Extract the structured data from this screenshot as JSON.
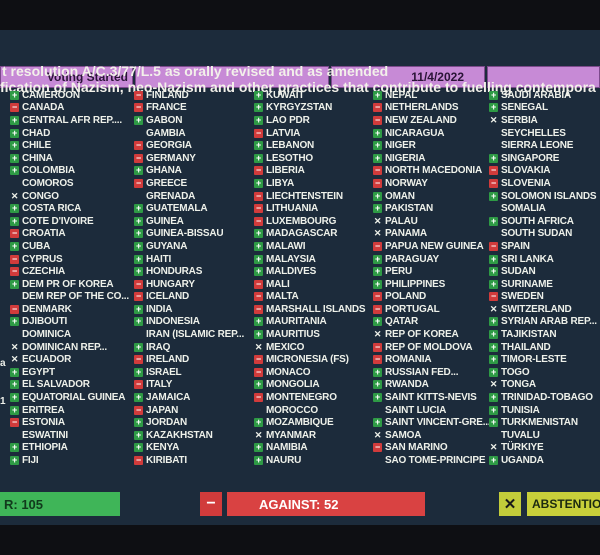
{
  "header": {
    "status": "Voting Started",
    "date": "11/4/2022"
  },
  "title": {
    "line1": "t resolution A/C.3/77/L.5 as orally revised and as amended",
    "line2": "fication of Nazism, neo-Nazism and other practices that contribute to fuelling contempora"
  },
  "legend_colors": {
    "yes": "#2e9a45",
    "no": "#d13b3b",
    "abstain": "#c3cc3a"
  },
  "columns": [
    [
      {
        "n": "CAMEROON",
        "v": "yes"
      },
      {
        "n": "CANADA",
        "v": "no"
      },
      {
        "n": "CENTRAL AFR REP....",
        "v": "yes"
      },
      {
        "n": "CHAD",
        "v": "yes"
      },
      {
        "n": "CHILE",
        "v": "yes"
      },
      {
        "n": "CHINA",
        "v": "yes"
      },
      {
        "n": "COLOMBIA",
        "v": "yes"
      },
      {
        "n": "COMOROS",
        "v": "none"
      },
      {
        "n": "CONGO",
        "v": "abstain"
      },
      {
        "n": "COSTA RICA",
        "v": "yes"
      },
      {
        "n": "COTE D'IVOIRE",
        "v": "yes"
      },
      {
        "n": "CROATIA",
        "v": "no"
      },
      {
        "n": "CUBA",
        "v": "yes"
      },
      {
        "n": "CYPRUS",
        "v": "no"
      },
      {
        "n": "CZECHIA",
        "v": "no"
      },
      {
        "n": "DEM PR OF KOREA",
        "v": "yes"
      },
      {
        "n": "DEM REP OF THE CO...",
        "v": "none"
      },
      {
        "n": "DENMARK",
        "v": "no"
      },
      {
        "n": "DJIBOUTI",
        "v": "yes"
      },
      {
        "n": "DOMINICA",
        "v": "none"
      },
      {
        "n": "DOMINICAN REP...",
        "v": "abstain"
      },
      {
        "n": "ECUADOR",
        "v": "abstain"
      },
      {
        "n": "EGYPT",
        "v": "yes"
      },
      {
        "n": "EL SALVADOR",
        "v": "yes"
      },
      {
        "n": "EQUATORIAL GUINEA",
        "v": "yes"
      },
      {
        "n": "ERITREA",
        "v": "yes"
      },
      {
        "n": "ESTONIA",
        "v": "no"
      },
      {
        "n": "ESWATINI",
        "v": "none"
      },
      {
        "n": "ETHIOPIA",
        "v": "yes"
      },
      {
        "n": "FIJI",
        "v": "yes"
      }
    ],
    [
      {
        "n": "FINLAND",
        "v": "no"
      },
      {
        "n": "FRANCE",
        "v": "no"
      },
      {
        "n": "GABON",
        "v": "yes"
      },
      {
        "n": "GAMBIA",
        "v": "none"
      },
      {
        "n": "GEORGIA",
        "v": "no"
      },
      {
        "n": "GERMANY",
        "v": "no"
      },
      {
        "n": "GHANA",
        "v": "yes"
      },
      {
        "n": "GREECE",
        "v": "no"
      },
      {
        "n": "GRENADA",
        "v": "none"
      },
      {
        "n": "GUATEMALA",
        "v": "yes"
      },
      {
        "n": "GUINEA",
        "v": "yes"
      },
      {
        "n": "GUINEA-BISSAU",
        "v": "yes"
      },
      {
        "n": "GUYANA",
        "v": "yes"
      },
      {
        "n": "HAITI",
        "v": "yes"
      },
      {
        "n": "HONDURAS",
        "v": "yes"
      },
      {
        "n": "HUNGARY",
        "v": "no"
      },
      {
        "n": "ICELAND",
        "v": "no"
      },
      {
        "n": "INDIA",
        "v": "yes"
      },
      {
        "n": "INDONESIA",
        "v": "yes"
      },
      {
        "n": "IRAN (ISLAMIC REP...",
        "v": "none"
      },
      {
        "n": "IRAQ",
        "v": "yes"
      },
      {
        "n": "IRELAND",
        "v": "no"
      },
      {
        "n": "ISRAEL",
        "v": "yes"
      },
      {
        "n": "ITALY",
        "v": "no"
      },
      {
        "n": "JAMAICA",
        "v": "yes"
      },
      {
        "n": "JAPAN",
        "v": "no"
      },
      {
        "n": "JORDAN",
        "v": "yes"
      },
      {
        "n": "KAZAKHSTAN",
        "v": "yes"
      },
      {
        "n": "KENYA",
        "v": "yes"
      },
      {
        "n": "KIRIBATI",
        "v": "no"
      }
    ],
    [
      {
        "n": "KUWAIT",
        "v": "yes"
      },
      {
        "n": "KYRGYZSTAN",
        "v": "yes"
      },
      {
        "n": "LAO PDR",
        "v": "yes"
      },
      {
        "n": "LATVIA",
        "v": "no"
      },
      {
        "n": "LEBANON",
        "v": "yes"
      },
      {
        "n": "LESOTHO",
        "v": "yes"
      },
      {
        "n": "LIBERIA",
        "v": "no"
      },
      {
        "n": "LIBYA",
        "v": "yes"
      },
      {
        "n": "LIECHTENSTEIN",
        "v": "no"
      },
      {
        "n": "LITHUANIA",
        "v": "no"
      },
      {
        "n": "LUXEMBOURG",
        "v": "no"
      },
      {
        "n": "MADAGASCAR",
        "v": "yes"
      },
      {
        "n": "MALAWI",
        "v": "yes"
      },
      {
        "n": "MALAYSIA",
        "v": "yes"
      },
      {
        "n": "MALDIVES",
        "v": "yes"
      },
      {
        "n": "MALI",
        "v": "no"
      },
      {
        "n": "MALTA",
        "v": "no"
      },
      {
        "n": "MARSHALL ISLANDS",
        "v": "no"
      },
      {
        "n": "MAURITANIA",
        "v": "yes"
      },
      {
        "n": "MAURITIUS",
        "v": "yes"
      },
      {
        "n": "MEXICO",
        "v": "abstain"
      },
      {
        "n": "MICRONESIA (FS)",
        "v": "no"
      },
      {
        "n": "MONACO",
        "v": "no"
      },
      {
        "n": "MONGOLIA",
        "v": "yes"
      },
      {
        "n": "MONTENEGRO",
        "v": "no"
      },
      {
        "n": "MOROCCO",
        "v": "none"
      },
      {
        "n": "MOZAMBIQUE",
        "v": "yes"
      },
      {
        "n": "MYANMAR",
        "v": "abstain"
      },
      {
        "n": "NAMIBIA",
        "v": "yes"
      },
      {
        "n": "NAURU",
        "v": "yes"
      }
    ],
    [
      {
        "n": "NEPAL",
        "v": "yes"
      },
      {
        "n": "NETHERLANDS",
        "v": "no"
      },
      {
        "n": "NEW ZEALAND",
        "v": "no"
      },
      {
        "n": "NICARAGUA",
        "v": "yes"
      },
      {
        "n": "NIGER",
        "v": "yes"
      },
      {
        "n": "NIGERIA",
        "v": "yes"
      },
      {
        "n": "NORTH MACEDONIA",
        "v": "no"
      },
      {
        "n": "NORWAY",
        "v": "no"
      },
      {
        "n": "OMAN",
        "v": "yes"
      },
      {
        "n": "PAKISTAN",
        "v": "yes"
      },
      {
        "n": "PALAU",
        "v": "abstain"
      },
      {
        "n": "PANAMA",
        "v": "abstain"
      },
      {
        "n": "PAPUA NEW GUINEA",
        "v": "no"
      },
      {
        "n": "PARAGUAY",
        "v": "yes"
      },
      {
        "n": "PERU",
        "v": "yes"
      },
      {
        "n": "PHILIPPINES",
        "v": "yes"
      },
      {
        "n": "POLAND",
        "v": "no"
      },
      {
        "n": "PORTUGAL",
        "v": "no"
      },
      {
        "n": "QATAR",
        "v": "yes"
      },
      {
        "n": "REP OF KOREA",
        "v": "abstain"
      },
      {
        "n": "REP OF MOLDOVA",
        "v": "no"
      },
      {
        "n": "ROMANIA",
        "v": "no"
      },
      {
        "n": "RUSSIAN FED...",
        "v": "yes"
      },
      {
        "n": "RWANDA",
        "v": "yes"
      },
      {
        "n": "SAINT KITTS-NEVIS",
        "v": "yes"
      },
      {
        "n": "SAINT LUCIA",
        "v": "none"
      },
      {
        "n": "SAINT VINCENT-GRE...",
        "v": "yes"
      },
      {
        "n": "SAMOA",
        "v": "abstain"
      },
      {
        "n": "SAN MARINO",
        "v": "no"
      },
      {
        "n": "SAO TOME-PRINCIPE",
        "v": "none"
      }
    ],
    [
      {
        "n": "SAUDI ARABIA",
        "v": "yes"
      },
      {
        "n": "SENEGAL",
        "v": "yes"
      },
      {
        "n": "SERBIA",
        "v": "abstain"
      },
      {
        "n": "SEYCHELLES",
        "v": "none"
      },
      {
        "n": "SIERRA LEONE",
        "v": "none"
      },
      {
        "n": "SINGAPORE",
        "v": "yes"
      },
      {
        "n": "SLOVAKIA",
        "v": "no"
      },
      {
        "n": "SLOVENIA",
        "v": "no"
      },
      {
        "n": "SOLOMON ISLANDS",
        "v": "yes"
      },
      {
        "n": "SOMALIA",
        "v": "none"
      },
      {
        "n": "SOUTH AFRICA",
        "v": "yes"
      },
      {
        "n": "SOUTH SUDAN",
        "v": "none"
      },
      {
        "n": "SPAIN",
        "v": "no"
      },
      {
        "n": "SRI LANKA",
        "v": "yes"
      },
      {
        "n": "SUDAN",
        "v": "yes"
      },
      {
        "n": "SURINAME",
        "v": "yes"
      },
      {
        "n": "SWEDEN",
        "v": "no"
      },
      {
        "n": "SWITZERLAND",
        "v": "abstain"
      },
      {
        "n": "SYRIAN ARAB REP...",
        "v": "yes"
      },
      {
        "n": "TAJIKISTAN",
        "v": "yes"
      },
      {
        "n": "THAILAND",
        "v": "yes"
      },
      {
        "n": "TIMOR-LESTE",
        "v": "yes"
      },
      {
        "n": "TOGO",
        "v": "yes"
      },
      {
        "n": "TONGA",
        "v": "abstain"
      },
      {
        "n": "TRINIDAD-TOBAGO",
        "v": "yes"
      },
      {
        "n": "TUNISIA",
        "v": "yes"
      },
      {
        "n": "TURKMENISTAN",
        "v": "yes"
      },
      {
        "n": "TUVALU",
        "v": "none"
      },
      {
        "n": "TÜRKIYE",
        "v": "abstain"
      },
      {
        "n": "UGANDA",
        "v": "yes"
      }
    ]
  ],
  "edge_glyphs": [
    "a",
    "1"
  ],
  "footer": {
    "yes_text": "R: 105",
    "against_text": "AGAINST: 52",
    "abstain_text": "ABSTENTIO"
  }
}
